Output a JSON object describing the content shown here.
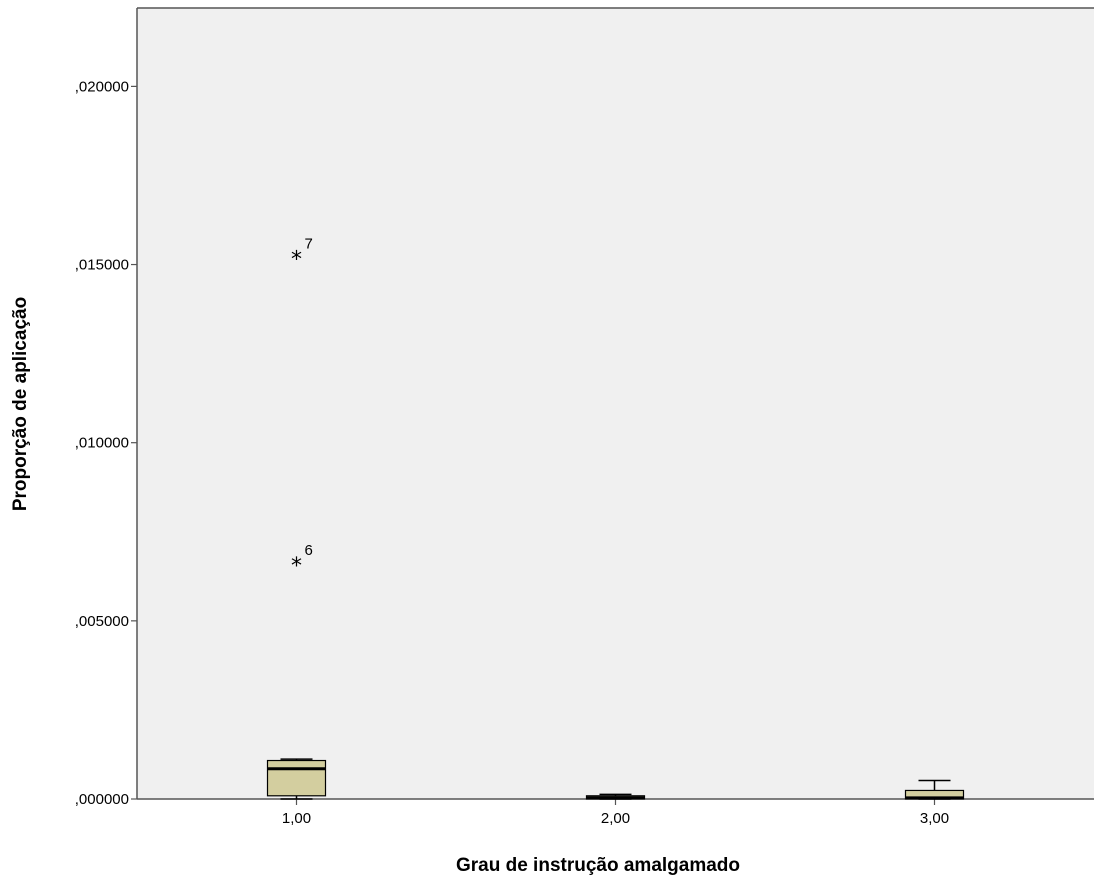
{
  "chart_data": {
    "type": "boxplot",
    "xlabel": "Grau de instrução amalgamado",
    "ylabel": "Proporção de aplicação",
    "ylim": [
      0,
      0.0222
    ],
    "yticks": [
      0,
      0.005,
      0.01,
      0.015,
      0.02
    ],
    "ytick_labels": [
      ",000000",
      ",005000",
      ",010000",
      ",015000",
      ",020000"
    ],
    "grid": false,
    "colors": {
      "plot_bg": "#f0f0f0",
      "box_fill": "#d3ce9f",
      "stroke": "#000000"
    },
    "groups": [
      {
        "label": "1,00",
        "min": 0.0,
        "q1": 9e-05,
        "median": 0.00085,
        "q3": 0.00108,
        "max": 0.00112,
        "outliers": [
          {
            "id": "7",
            "value": 0.0152
          },
          {
            "id": "6",
            "value": 0.0066
          }
        ]
      },
      {
        "label": "2,00",
        "min": 0.0,
        "q1": 0.0,
        "median": 3e-05,
        "q3": 9e-05,
        "max": 0.00013,
        "outliers": []
      },
      {
        "label": "3,00",
        "min": 0.0,
        "q1": 0.0,
        "median": 3e-05,
        "q3": 0.00024,
        "max": 0.00052,
        "outliers": []
      }
    ]
  }
}
